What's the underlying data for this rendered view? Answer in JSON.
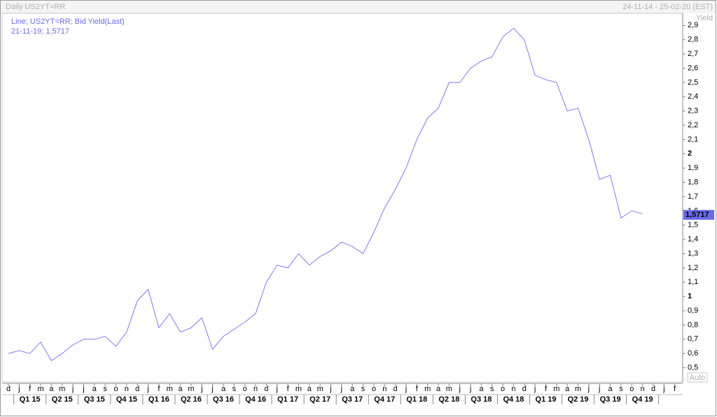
{
  "header": {
    "left": "Daily US2YT=RR",
    "right": "24-11-14 - 25-02-20 (EST)"
  },
  "chart_data": {
    "type": "line",
    "legend": [
      "Line; US2YT=RR; Bid Yield(Last)",
      "21-11-19; 1,5717"
    ],
    "y_axis_label": "Yield",
    "auto_button": "Auto",
    "categories": [
      "d",
      "j",
      "f",
      "m",
      "a",
      "m",
      "j",
      "j",
      "a",
      "s",
      "o",
      "n",
      "d",
      "j",
      "f",
      "m",
      "a",
      "m",
      "j",
      "j",
      "a",
      "s",
      "o",
      "n",
      "d",
      "j",
      "f",
      "m",
      "a",
      "m",
      "j",
      "j",
      "a",
      "s",
      "o",
      "n",
      "d",
      "j",
      "f",
      "m",
      "a",
      "m",
      "j",
      "j",
      "a",
      "s",
      "o",
      "n",
      "d",
      "j",
      "f",
      "m",
      "a",
      "m",
      "j",
      "j",
      "a",
      "s",
      "o",
      "n",
      "d",
      "j",
      "f"
    ],
    "quarters": [
      "Q1 15",
      "Q2 15",
      "Q3 15",
      "Q4 15",
      "Q1 16",
      "Q2 16",
      "Q3 16",
      "Q4 16",
      "Q1 17",
      "Q2 17",
      "Q3 17",
      "Q4 17",
      "Q1 18",
      "Q2 18",
      "Q3 18",
      "Q4 18",
      "Q1 19",
      "Q2 19",
      "Q3 19",
      "Q4 19"
    ],
    "series": [
      {
        "name": "US2YT=RR",
        "color": "#7b7bef",
        "values": [
          0.6,
          0.62,
          0.6,
          0.68,
          0.55,
          0.6,
          0.66,
          0.7,
          0.7,
          0.72,
          0.65,
          0.75,
          0.97,
          1.05,
          0.78,
          0.88,
          0.75,
          0.78,
          0.85,
          0.63,
          0.72,
          0.77,
          0.82,
          0.88,
          1.1,
          1.22,
          1.2,
          1.3,
          1.22,
          1.28,
          1.32,
          1.38,
          1.35,
          1.3,
          1.45,
          1.62,
          1.75,
          1.9,
          2.1,
          2.25,
          2.32,
          2.5,
          2.5,
          2.6,
          2.65,
          2.68,
          2.82,
          2.88,
          2.8,
          2.55,
          2.52,
          2.5,
          2.3,
          2.32,
          2.1,
          1.82,
          1.85,
          1.55,
          1.6,
          1.58,
          null,
          null,
          null
        ]
      }
    ],
    "last_value": {
      "value": 1.5717,
      "label": "1,5717",
      "color": "#6a6ae8"
    },
    "ylim": [
      0.4,
      2.985
    ],
    "yticks": [
      {
        "value": 0.5,
        "label": "0,5"
      },
      {
        "value": 0.6,
        "label": "0,6"
      },
      {
        "value": 0.7,
        "label": "0,7"
      },
      {
        "value": 0.8,
        "label": "0,8"
      },
      {
        "value": 0.9,
        "label": "0,9"
      },
      1,
      {
        "value": 1.1,
        "label": "1,1"
      },
      {
        "value": 1.2,
        "label": "1,2"
      },
      {
        "value": 1.3,
        "label": "1,3"
      },
      {
        "value": 1.4,
        "label": "1,4"
      },
      {
        "value": 1.5,
        "label": "1,5"
      },
      {
        "value": 1.6,
        "label": "1,6"
      },
      {
        "value": 1.7,
        "label": "1,7"
      },
      {
        "value": 1.8,
        "label": "1,8"
      },
      {
        "value": 1.9,
        "label": "1,9"
      },
      2,
      {
        "value": 2.1,
        "label": "2,1"
      },
      {
        "value": 2.2,
        "label": "2,2"
      },
      {
        "value": 2.3,
        "label": "2,3"
      },
      {
        "value": 2.4,
        "label": "2,4"
      },
      {
        "value": 2.5,
        "label": "2,5"
      },
      {
        "value": 2.6,
        "label": "2,6"
      },
      {
        "value": 2.7,
        "label": "2,7"
      },
      {
        "value": 2.8,
        "label": "2,8"
      },
      {
        "value": 2.9,
        "label": "2,9"
      }
    ],
    "grid": false
  }
}
